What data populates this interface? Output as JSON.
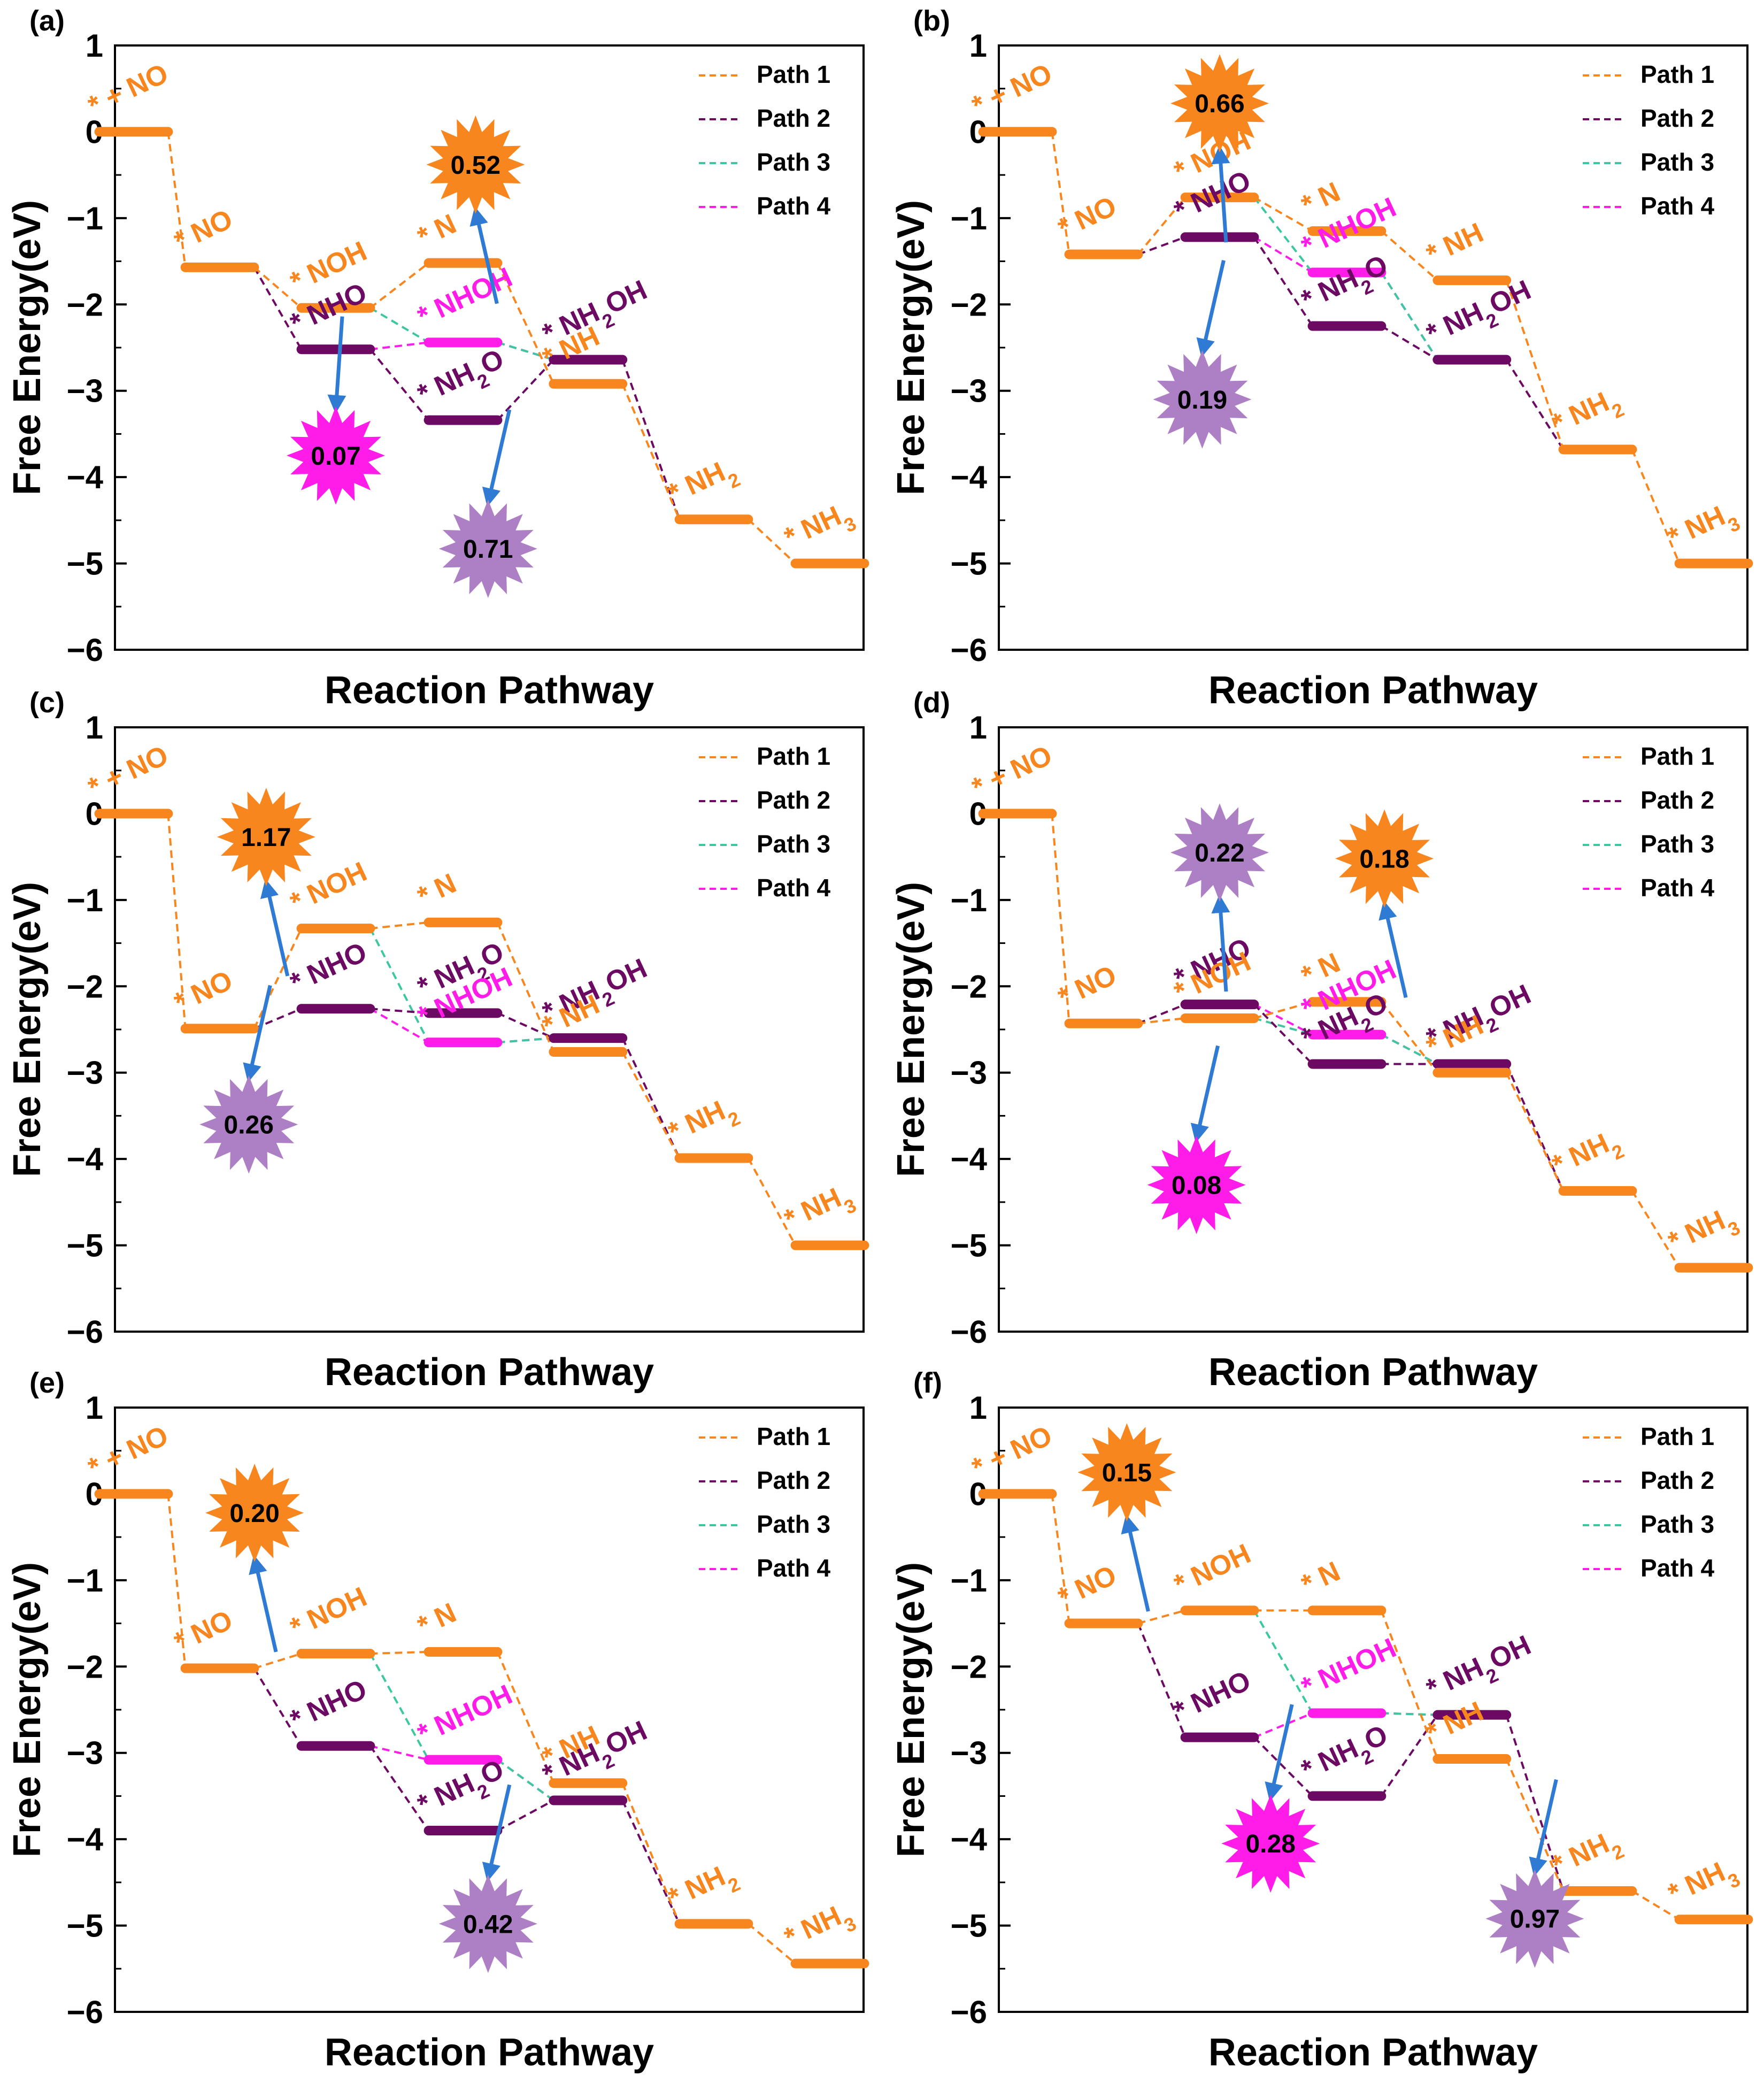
{
  "colors": {
    "path1": "#F7861E",
    "path2": "#6C0A63",
    "path3": "#3DC7A0",
    "path4": "#FF1CE8",
    "arrow": "#2F7BD3",
    "star_orange": "#F7861E",
    "star_purple": "#AD7FC4",
    "star_magenta": "#FF1CE8"
  },
  "shared": {
    "xlabel": "Reaction Pathway",
    "ylabel": "Free Energy(eV)",
    "y_ticks": [
      "1",
      "0",
      "−1",
      "−2",
      "−3",
      "−4",
      "−5",
      "−6"
    ],
    "legend": [
      "Path 1",
      "Path 2",
      "Path 3",
      "Path 4"
    ]
  },
  "chart_data": [
    {
      "type": "line",
      "panel": "(a)",
      "ylim": [
        -6,
        1
      ],
      "xlabel": "Reaction Pathway",
      "ylabel": "Free Energy(eV)",
      "legend_position": "top-right",
      "levels": [
        {
          "pos": 0,
          "y": 0,
          "label": "* + NO",
          "path": 1
        },
        {
          "pos": 1,
          "y": -1.57,
          "label": "* NO",
          "path": 1
        },
        {
          "pos": 2,
          "y": -2.04,
          "label": "* NOH",
          "path": 1
        },
        {
          "pos": 2,
          "y": -2.52,
          "label": "* NHO",
          "path": 2
        },
        {
          "pos": 3,
          "y": -1.52,
          "label": "* N",
          "path": 1
        },
        {
          "pos": 3,
          "y": -2.44,
          "label": "* NHOH",
          "path": 4
        },
        {
          "pos": 3,
          "y": -3.34,
          "label": "* NH2O",
          "path": 2
        },
        {
          "pos": 4,
          "y": -2.64,
          "label": "* NH2OH",
          "path": 2
        },
        {
          "pos": 4,
          "y": -2.92,
          "label": "* NH",
          "path": 1
        },
        {
          "pos": 5,
          "y": -4.49,
          "label": "* NH2",
          "path": 1
        },
        {
          "pos": 6,
          "y": -5.0,
          "label": "* NH3",
          "path": 1
        }
      ],
      "paths": [
        {
          "name": "Path 1",
          "levels": [
            0,
            1,
            2,
            4,
            8,
            9,
            10
          ]
        },
        {
          "name": "Path 2",
          "levels": [
            1,
            3,
            6,
            7,
            9
          ]
        },
        {
          "name": "Path 3",
          "levels": [
            2,
            5,
            7
          ]
        },
        {
          "name": "Path 4",
          "levels": [
            3,
            5,
            7
          ]
        }
      ],
      "badges": [
        {
          "value": "0.52",
          "color": "orange",
          "pos": 3.1,
          "y": -0.38
        },
        {
          "value": "0.07",
          "color": "magenta",
          "pos": 2.0,
          "y": -3.75
        },
        {
          "value": "0.71",
          "color": "purple",
          "pos": 3.2,
          "y": -4.83
        }
      ]
    },
    {
      "type": "line",
      "panel": "(b)",
      "ylim": [
        -6,
        1
      ],
      "xlabel": "Reaction Pathway",
      "ylabel": "Free Energy(eV)",
      "legend_position": "top-right",
      "levels": [
        {
          "pos": 0,
          "y": 0,
          "label": "* + NO",
          "path": 1
        },
        {
          "pos": 1,
          "y": -1.42,
          "label": "* NO",
          "path": 1
        },
        {
          "pos": 2,
          "y": -0.76,
          "label": "* NOH",
          "path": 1
        },
        {
          "pos": 2,
          "y": -1.22,
          "label": "* NHO",
          "path": 2
        },
        {
          "pos": 3,
          "y": -1.15,
          "label": "* N",
          "path": 1
        },
        {
          "pos": 3,
          "y": -1.63,
          "label": "* NHOH",
          "path": 4
        },
        {
          "pos": 3,
          "y": -2.25,
          "label": "* NH2O",
          "path": 2
        },
        {
          "pos": 4,
          "y": -1.72,
          "label": "* NH",
          "path": 1
        },
        {
          "pos": 4,
          "y": -2.64,
          "label": "* NH2OH",
          "path": 2
        },
        {
          "pos": 5,
          "y": -3.68,
          "label": "* NH2",
          "path": 1
        },
        {
          "pos": 6,
          "y": -5.0,
          "label": "* NH3",
          "path": 1
        }
      ],
      "paths": [
        {
          "name": "Path 1",
          "levels": [
            0,
            1,
            2,
            4,
            7,
            9,
            10
          ]
        },
        {
          "name": "Path 2",
          "levels": [
            1,
            3,
            6,
            8,
            9
          ]
        },
        {
          "name": "Path 3",
          "levels": [
            2,
            5,
            8
          ]
        },
        {
          "name": "Path 4",
          "levels": [
            3,
            5,
            8
          ]
        }
      ],
      "badges": [
        {
          "value": "0.66",
          "color": "orange",
          "pos": 2.0,
          "y": 0.33
        },
        {
          "value": "0.19",
          "color": "purple",
          "pos": 1.85,
          "y": -3.1
        }
      ]
    },
    {
      "type": "line",
      "panel": "(c)",
      "ylim": [
        -6,
        1
      ],
      "xlabel": "Reaction Pathway",
      "ylabel": "Free Energy(eV)",
      "legend_position": "top-right",
      "levels": [
        {
          "pos": 0,
          "y": 0,
          "label": "* + NO",
          "path": 1
        },
        {
          "pos": 1,
          "y": -2.49,
          "label": "* NO",
          "path": 1
        },
        {
          "pos": 2,
          "y": -1.33,
          "label": "* NOH",
          "path": 1
        },
        {
          "pos": 2,
          "y": -2.26,
          "label": "* NHO",
          "path": 2
        },
        {
          "pos": 3,
          "y": -1.26,
          "label": "* N",
          "path": 1
        },
        {
          "pos": 3,
          "y": -2.31,
          "label": "* NH2O",
          "path": 2
        },
        {
          "pos": 3,
          "y": -2.65,
          "label": "* NHOH",
          "path": 4
        },
        {
          "pos": 4,
          "y": -2.6,
          "label": "* NH2OH",
          "path": 2
        },
        {
          "pos": 4,
          "y": -2.76,
          "label": "* NH",
          "path": 1
        },
        {
          "pos": 5,
          "y": -3.99,
          "label": "* NH2",
          "path": 1
        },
        {
          "pos": 6,
          "y": -5.0,
          "label": "* NH3",
          "path": 1
        }
      ],
      "paths": [
        {
          "name": "Path 1",
          "levels": [
            0,
            1,
            2,
            4,
            8,
            9,
            10
          ]
        },
        {
          "name": "Path 2",
          "levels": [
            1,
            3,
            5,
            7,
            9
          ]
        },
        {
          "name": "Path 3",
          "levels": [
            2,
            6,
            7
          ]
        },
        {
          "name": "Path 4",
          "levels": [
            3,
            6,
            7
          ]
        }
      ],
      "badges": [
        {
          "value": "1.17",
          "color": "orange",
          "pos": 1.4,
          "y": -0.27
        },
        {
          "value": "0.26",
          "color": "purple",
          "pos": 1.25,
          "y": -3.6
        }
      ]
    },
    {
      "type": "line",
      "panel": "(d)",
      "ylim": [
        -6,
        1
      ],
      "xlabel": "Reaction Pathway",
      "ylabel": "Free Energy(eV)",
      "legend_position": "top-right",
      "levels": [
        {
          "pos": 0,
          "y": 0,
          "label": "* + NO",
          "path": 1
        },
        {
          "pos": 1,
          "y": -2.43,
          "label": "* NO",
          "path": 1
        },
        {
          "pos": 2,
          "y": -2.21,
          "label": "* NHO",
          "path": 2
        },
        {
          "pos": 2,
          "y": -2.37,
          "label": "* NOH",
          "path": 1
        },
        {
          "pos": 3,
          "y": -2.18,
          "label": "* N",
          "path": 1
        },
        {
          "pos": 3,
          "y": -2.56,
          "label": "* NHOH",
          "path": 4
        },
        {
          "pos": 3,
          "y": -2.9,
          "label": "* NH2O",
          "path": 2
        },
        {
          "pos": 4,
          "y": -2.9,
          "label": "* NH2OH",
          "path": 2
        },
        {
          "pos": 4,
          "y": -3.0,
          "label": "* NH",
          "path": 1
        },
        {
          "pos": 5,
          "y": -4.37,
          "label": "* NH2",
          "path": 1
        },
        {
          "pos": 6,
          "y": -5.26,
          "label": "* NH3",
          "path": 1
        }
      ],
      "paths": [
        {
          "name": "Path 1",
          "levels": [
            0,
            1,
            3,
            4,
            8,
            9,
            10
          ]
        },
        {
          "name": "Path 2",
          "levels": [
            1,
            2,
            6,
            7,
            9
          ]
        },
        {
          "name": "Path 3",
          "levels": [
            3,
            5,
            7
          ]
        },
        {
          "name": "Path 4",
          "levels": [
            2,
            5,
            7
          ]
        }
      ],
      "badges": [
        {
          "value": "0.22",
          "color": "purple",
          "pos": 2.0,
          "y": -0.45
        },
        {
          "value": "0.18",
          "color": "orange",
          "pos": 3.3,
          "y": -0.52
        },
        {
          "value": "0.08",
          "color": "magenta",
          "pos": 1.8,
          "y": -4.3
        }
      ]
    },
    {
      "type": "line",
      "panel": "(e)",
      "ylim": [
        -6,
        1
      ],
      "xlabel": "Reaction Pathway",
      "ylabel": "Free Energy(eV)",
      "legend_position": "top-right",
      "levels": [
        {
          "pos": 0,
          "y": 0,
          "label": "* + NO",
          "path": 1
        },
        {
          "pos": 1,
          "y": -2.02,
          "label": "* NO",
          "path": 1
        },
        {
          "pos": 2,
          "y": -1.85,
          "label": "* NOH",
          "path": 1
        },
        {
          "pos": 2,
          "y": -2.92,
          "label": "* NHO",
          "path": 2
        },
        {
          "pos": 3,
          "y": -1.83,
          "label": "* N",
          "path": 1
        },
        {
          "pos": 3,
          "y": -3.08,
          "label": "* NHOH",
          "path": 4
        },
        {
          "pos": 3,
          "y": -3.9,
          "label": "* NH2O",
          "path": 2
        },
        {
          "pos": 4,
          "y": -3.35,
          "label": "* NH",
          "path": 1
        },
        {
          "pos": 4,
          "y": -3.55,
          "label": "* NH2OH",
          "path": 2
        },
        {
          "pos": 5,
          "y": -4.98,
          "label": "* NH2",
          "path": 1
        },
        {
          "pos": 6,
          "y": -5.44,
          "label": "* NH3",
          "path": 1
        }
      ],
      "paths": [
        {
          "name": "Path 1",
          "levels": [
            0,
            1,
            2,
            4,
            7,
            9,
            10
          ]
        },
        {
          "name": "Path 2",
          "levels": [
            1,
            3,
            6,
            8,
            9
          ]
        },
        {
          "name": "Path 3",
          "levels": [
            2,
            5,
            8
          ]
        },
        {
          "name": "Path 4",
          "levels": [
            3,
            5,
            8
          ]
        }
      ],
      "badges": [
        {
          "value": "0.20",
          "color": "orange",
          "pos": 1.3,
          "y": -0.22
        },
        {
          "value": "0.42",
          "color": "purple",
          "pos": 3.2,
          "y": -4.98
        }
      ]
    },
    {
      "type": "line",
      "panel": "(f)",
      "ylim": [
        -6,
        1
      ],
      "xlabel": "Reaction Pathway",
      "ylabel": "Free Energy(eV)",
      "legend_position": "top-right",
      "levels": [
        {
          "pos": 0,
          "y": 0,
          "label": "* + NO",
          "path": 1
        },
        {
          "pos": 1,
          "y": -1.5,
          "label": "* NO",
          "path": 1
        },
        {
          "pos": 2,
          "y": -1.35,
          "label": "* NOH",
          "path": 1
        },
        {
          "pos": 2,
          "y": -2.82,
          "label": "* NHO",
          "path": 2
        },
        {
          "pos": 3,
          "y": -1.35,
          "label": "* N",
          "path": 1
        },
        {
          "pos": 3,
          "y": -2.54,
          "label": "* NHOH",
          "path": 4
        },
        {
          "pos": 3,
          "y": -3.5,
          "label": "* NH2O",
          "path": 2
        },
        {
          "pos": 4,
          "y": -2.56,
          "label": "* NH2OH",
          "path": 2
        },
        {
          "pos": 4,
          "y": -3.07,
          "label": "* NH",
          "path": 1
        },
        {
          "pos": 5,
          "y": -4.6,
          "label": "* NH2",
          "path": 1
        },
        {
          "pos": 6,
          "y": -4.93,
          "label": "* NH3",
          "path": 1
        }
      ],
      "paths": [
        {
          "name": "Path 1",
          "levels": [
            0,
            1,
            2,
            4,
            8,
            9,
            10
          ]
        },
        {
          "name": "Path 2",
          "levels": [
            1,
            3,
            6,
            7,
            9
          ]
        },
        {
          "name": "Path 3",
          "levels": [
            2,
            5,
            7
          ]
        },
        {
          "name": "Path 4",
          "levels": [
            3,
            5,
            7
          ]
        }
      ],
      "badges": [
        {
          "value": "0.15",
          "color": "orange",
          "pos": 1.2,
          "y": 0.25
        },
        {
          "value": "0.28",
          "color": "magenta",
          "pos": 2.4,
          "y": -4.05
        },
        {
          "value": "0.97",
          "color": "purple",
          "pos": 4.5,
          "y": -4.92
        }
      ]
    }
  ]
}
